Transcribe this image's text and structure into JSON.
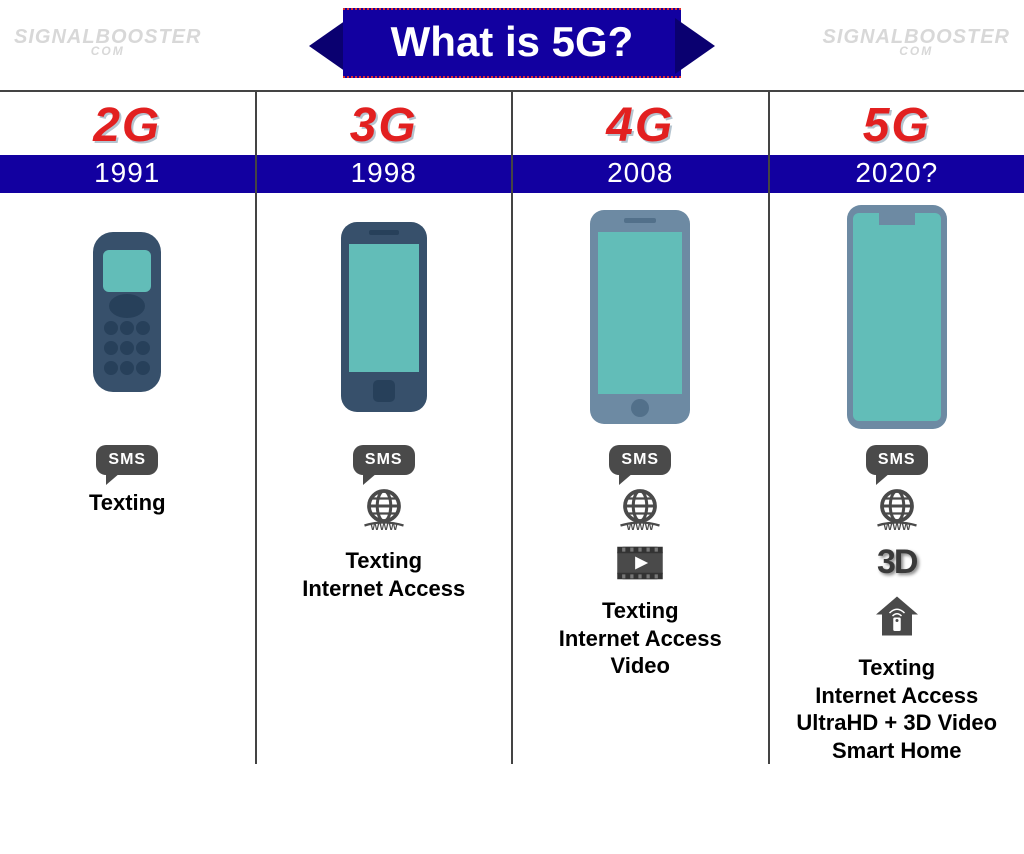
{
  "title": "What is 5G?",
  "watermark": {
    "line1": "SIGNALBOOSTER",
    "line2": "COM"
  },
  "colors": {
    "banner_bg": "#1200a0",
    "banner_tail": "#0a0070",
    "gen_label": "#e22020",
    "year_bar_bg": "#1200a0",
    "icon_gray": "#4a4a4a",
    "phone_screen": "#62bdb8",
    "phone_body_dark": "#37506b",
    "phone_body_light": "#6d8aa3",
    "divider": "#444444"
  },
  "generations": [
    {
      "id": "2g",
      "label": "2G",
      "year": "1991",
      "phone_type": "classic",
      "icons": [
        "sms"
      ],
      "features": [
        "Texting"
      ]
    },
    {
      "id": "3g",
      "label": "3G",
      "year": "1998",
      "phone_type": "early_smart",
      "icons": [
        "sms",
        "www"
      ],
      "features": [
        "Texting",
        "Internet Access"
      ]
    },
    {
      "id": "4g",
      "label": "4G",
      "year": "2008",
      "phone_type": "smart",
      "icons": [
        "sms",
        "www",
        "video"
      ],
      "features": [
        "Texting",
        "Internet Access",
        "Video"
      ]
    },
    {
      "id": "5g",
      "label": "5G",
      "year": "2020?",
      "phone_type": "modern",
      "icons": [
        "sms",
        "www",
        "3d",
        "home"
      ],
      "features": [
        "Texting",
        "Internet Access",
        "UltraHD + 3D Video",
        "Smart Home"
      ]
    }
  ],
  "icon_labels": {
    "sms": "SMS",
    "www": "WWW",
    "3d": "3D"
  }
}
